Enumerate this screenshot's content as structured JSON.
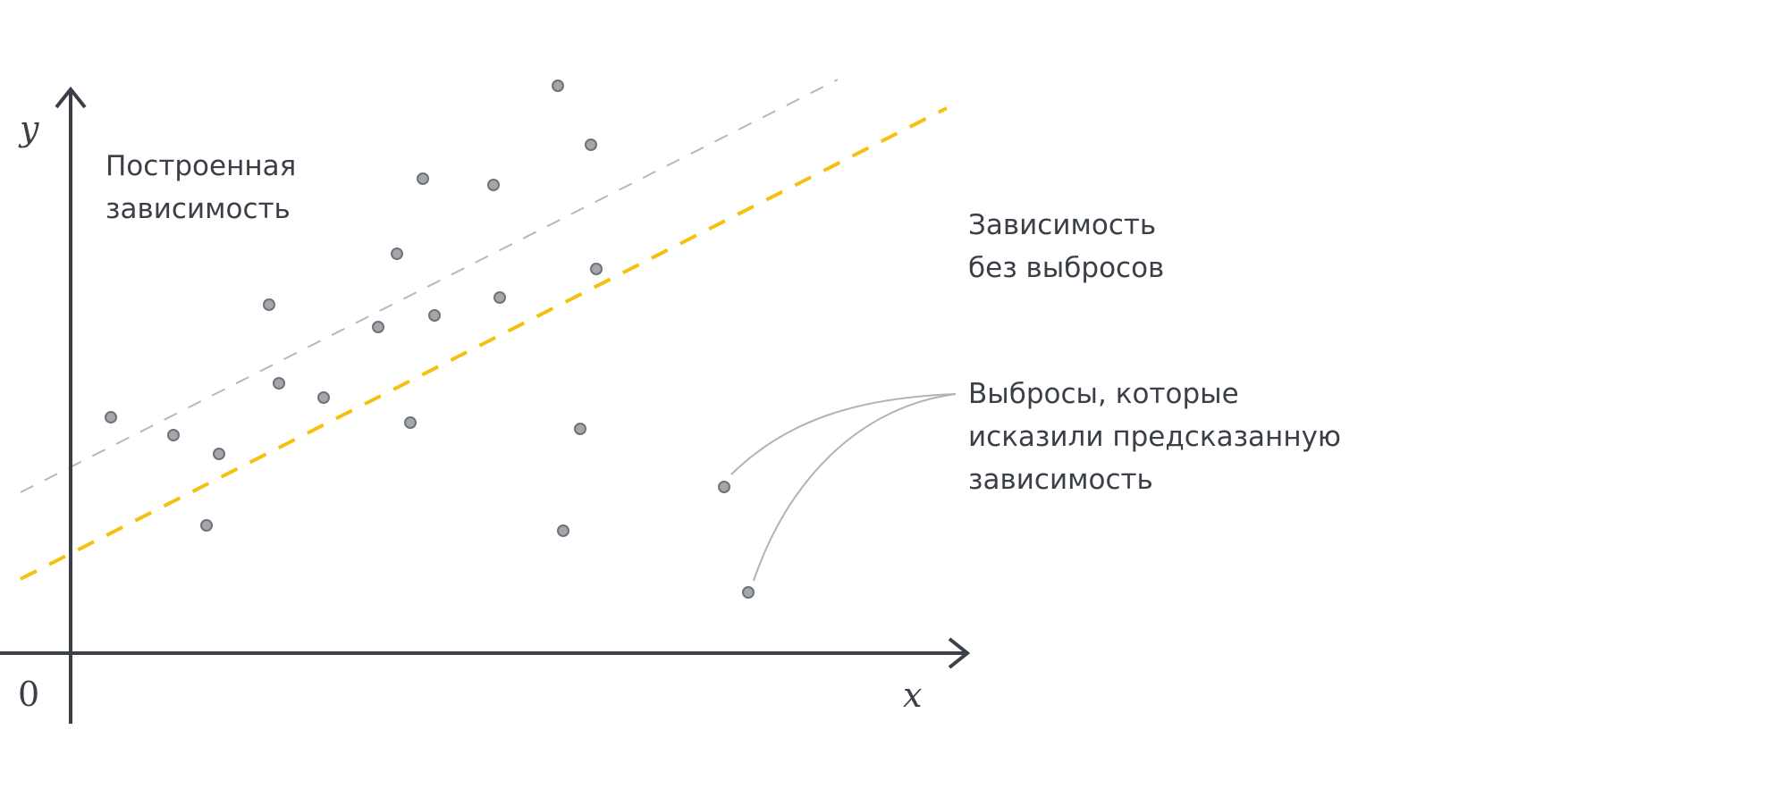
{
  "axes": {
    "y_label": "y",
    "x_label": "x",
    "origin_label": "0"
  },
  "annotations": {
    "fitted": [
      "Построенная",
      "зависимость"
    ],
    "without_outliers": [
      "Зависимость",
      "без выбросов"
    ],
    "outliers": [
      "Выбросы, которые",
      "исказили предсказанную",
      "зависимость"
    ]
  },
  "colors": {
    "axis": "#3b4048",
    "fitted_line": "#f5c10f",
    "no_outlier_line": "#b5b8bc",
    "point_fill": "#a3a6aa",
    "point_stroke": "#6f7378",
    "leader": "#b0b3b7"
  }
}
